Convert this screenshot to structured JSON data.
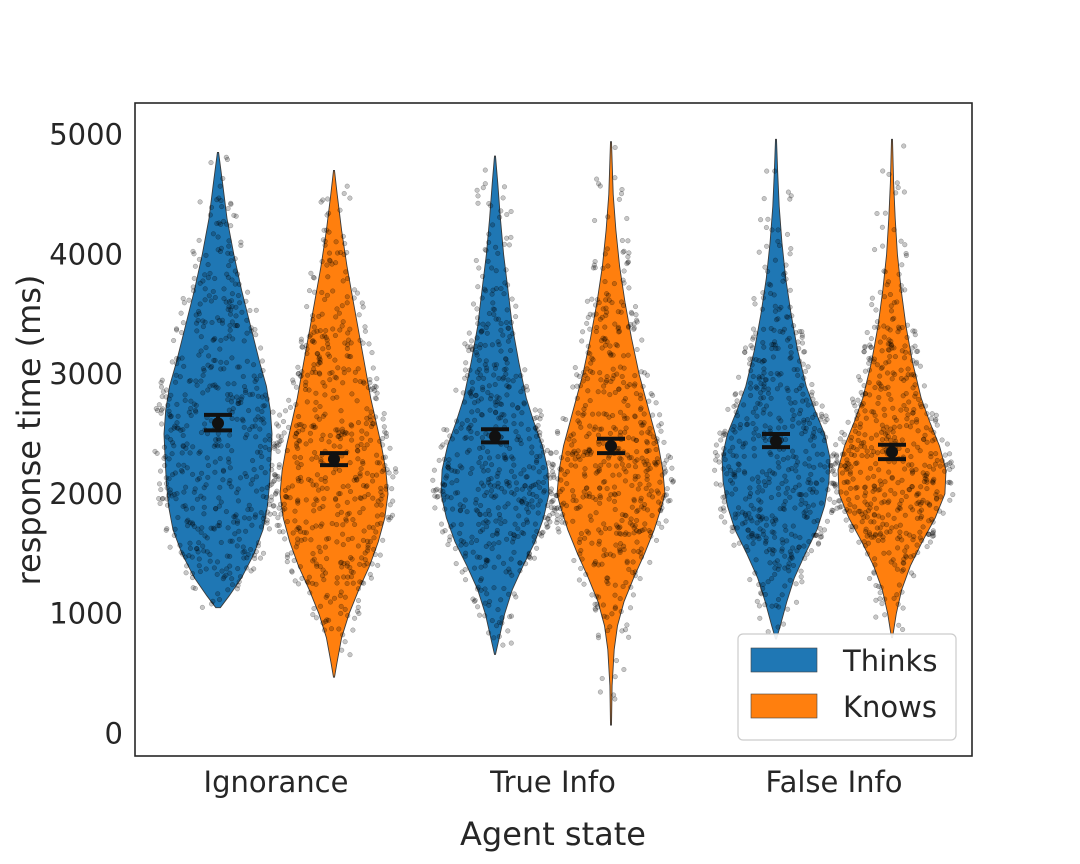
{
  "chart_data": {
    "type": "violin",
    "title": "",
    "xlabel": "Agent state",
    "ylabel": "response time (ms)",
    "categories": [
      "Ignorance",
      "True Info",
      "False Info"
    ],
    "ylim": [
      -180,
      5250
    ],
    "yticks": [
      0,
      1000,
      2000,
      3000,
      4000,
      5000
    ],
    "grid": false,
    "legend_position": "bottom-right",
    "series": [
      {
        "name": "Thinks",
        "color": "#1f77b4",
        "means": [
          2590,
          2480,
          2440
        ],
        "ci_low": [
          2530,
          2430,
          2390
        ],
        "ci_high": [
          2660,
          2540,
          2500
        ],
        "ranges": [
          [
            1050,
            4850
          ],
          [
            660,
            4820
          ],
          [
            790,
            4960
          ]
        ],
        "profiles": [
          [
            [
              1050,
              4
            ],
            [
              1150,
              20
            ],
            [
              1300,
              42
            ],
            [
              1500,
              64
            ],
            [
              1700,
              80
            ],
            [
              1900,
              88
            ],
            [
              2100,
              92
            ],
            [
              2300,
              94
            ],
            [
              2500,
              96
            ],
            [
              2700,
              93
            ],
            [
              2900,
              86
            ],
            [
              3100,
              74
            ],
            [
              3400,
              58
            ],
            [
              3700,
              42
            ],
            [
              4000,
              28
            ],
            [
              4300,
              16
            ],
            [
              4600,
              8
            ],
            [
              4850,
              1
            ]
          ],
          [
            [
              660,
              1
            ],
            [
              800,
              8
            ],
            [
              1000,
              18
            ],
            [
              1200,
              32
            ],
            [
              1400,
              52
            ],
            [
              1600,
              74
            ],
            [
              1800,
              90
            ],
            [
              2000,
              100
            ],
            [
              2200,
              98
            ],
            [
              2400,
              88
            ],
            [
              2600,
              72
            ],
            [
              2800,
              58
            ],
            [
              3100,
              44
            ],
            [
              3400,
              32
            ],
            [
              3700,
              24
            ],
            [
              4000,
              16
            ],
            [
              4300,
              10
            ],
            [
              4600,
              5
            ],
            [
              4820,
              1
            ]
          ],
          [
            [
              790,
              1
            ],
            [
              900,
              8
            ],
            [
              1100,
              20
            ],
            [
              1300,
              34
            ],
            [
              1500,
              54
            ],
            [
              1700,
              76
            ],
            [
              1900,
              90
            ],
            [
              2100,
              98
            ],
            [
              2300,
              100
            ],
            [
              2500,
              90
            ],
            [
              2700,
              72
            ],
            [
              2900,
              56
            ],
            [
              3200,
              40
            ],
            [
              3500,
              28
            ],
            [
              3800,
              18
            ],
            [
              4100,
              11
            ],
            [
              4400,
              6
            ],
            [
              4700,
              3
            ],
            [
              4960,
              1
            ]
          ]
        ]
      },
      {
        "name": "Knows",
        "color": "#ff7f0e",
        "means": [
          2290,
          2400,
          2350
        ],
        "ci_low": [
          2240,
          2340,
          2290
        ],
        "ci_high": [
          2340,
          2460,
          2410
        ],
        "ranges": [
          [
            470,
            4700
          ],
          [
            70,
            4940
          ],
          [
            800,
            4960
          ]
        ],
        "profiles": [
          [
            [
              470,
              1
            ],
            [
              600,
              6
            ],
            [
              800,
              14
            ],
            [
              1000,
              28
            ],
            [
              1200,
              46
            ],
            [
              1400,
              66
            ],
            [
              1600,
              82
            ],
            [
              1800,
              94
            ],
            [
              2000,
              100
            ],
            [
              2200,
              96
            ],
            [
              2400,
              88
            ],
            [
              2600,
              78
            ],
            [
              2800,
              68
            ],
            [
              3000,
              60
            ],
            [
              3300,
              48
            ],
            [
              3600,
              36
            ],
            [
              3900,
              24
            ],
            [
              4200,
              14
            ],
            [
              4500,
              6
            ],
            [
              4700,
              1
            ]
          ],
          [
            [
              70,
              1
            ],
            [
              400,
              2
            ],
            [
              700,
              6
            ],
            [
              900,
              12
            ],
            [
              1100,
              24
            ],
            [
              1300,
              42
            ],
            [
              1500,
              62
            ],
            [
              1700,
              80
            ],
            [
              1900,
              94
            ],
            [
              2000,
              100
            ],
            [
              2200,
              96
            ],
            [
              2400,
              88
            ],
            [
              2600,
              76
            ],
            [
              2800,
              64
            ],
            [
              3000,
              52
            ],
            [
              3300,
              38
            ],
            [
              3600,
              26
            ],
            [
              3900,
              16
            ],
            [
              4200,
              9
            ],
            [
              4500,
              4
            ],
            [
              4940,
              1
            ]
          ],
          [
            [
              800,
              1
            ],
            [
              1000,
              8
            ],
            [
              1200,
              18
            ],
            [
              1400,
              34
            ],
            [
              1600,
              56
            ],
            [
              1800,
              80
            ],
            [
              2000,
              98
            ],
            [
              2200,
              100
            ],
            [
              2400,
              88
            ],
            [
              2600,
              70
            ],
            [
              2800,
              54
            ],
            [
              3100,
              38
            ],
            [
              3400,
              26
            ],
            [
              3700,
              17
            ],
            [
              4000,
              10
            ],
            [
              4300,
              6
            ],
            [
              4600,
              3
            ],
            [
              4960,
              1
            ]
          ]
        ]
      }
    ]
  }
}
